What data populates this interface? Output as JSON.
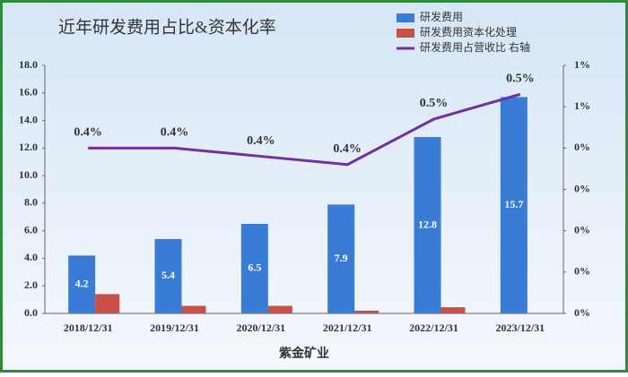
{
  "chart_data": {
    "type": "bar",
    "title": "近年研发费用占比&资本化率",
    "xlabel": "紫金矿业",
    "categories": [
      "2018/12/31",
      "2019/12/31",
      "2020/12/31",
      "2021/12/31",
      "2022/12/31",
      "2023/12/31"
    ],
    "series": [
      {
        "name": "研发费用",
        "color": "#3a7bd5",
        "type": "bar",
        "values": [
          4.2,
          5.4,
          6.5,
          7.9,
          12.8,
          15.7
        ]
      },
      {
        "name": "研发费用资本化处理",
        "color": "#c9504a",
        "type": "bar",
        "values": [
          1.4,
          0.55,
          0.55,
          0.2,
          0.45,
          0
        ]
      },
      {
        "name": "研发费用占营收比 右轴",
        "color": "#7030a0",
        "type": "line",
        "axis": "y2",
        "values": [
          0.4,
          0.4,
          0.38,
          0.36,
          0.47,
          0.53
        ],
        "value_labels": [
          "0.4%",
          "0.4%",
          "0.4%",
          "0.4%",
          "0.5%",
          "0.5%"
        ]
      }
    ],
    "ylim": [
      0,
      18
    ],
    "yticks": [
      {
        "value": 0,
        "label": "0.0"
      },
      {
        "value": 2,
        "label": "2.0"
      },
      {
        "value": 4,
        "label": "4.0"
      },
      {
        "value": 6,
        "label": "6.0"
      },
      {
        "value": 8,
        "label": "8.0"
      },
      {
        "value": 10,
        "label": "10.0"
      },
      {
        "value": 12,
        "label": "12.0"
      },
      {
        "value": 14,
        "label": "14.0"
      },
      {
        "value": 16,
        "label": "16.0"
      },
      {
        "value": 18,
        "label": "18.0"
      }
    ],
    "y2lim": [
      0,
      0.6
    ],
    "y2ticks": [
      {
        "value": 0,
        "label": "0%"
      },
      {
        "value": 0.1,
        "label": "0%"
      },
      {
        "value": 0.2,
        "label": "0%"
      },
      {
        "value": 0.3,
        "label": "0%"
      },
      {
        "value": 0.4,
        "label": "0%"
      },
      {
        "value": 0.5,
        "label": "1%"
      },
      {
        "value": 0.6,
        "label": "1%"
      }
    ]
  }
}
